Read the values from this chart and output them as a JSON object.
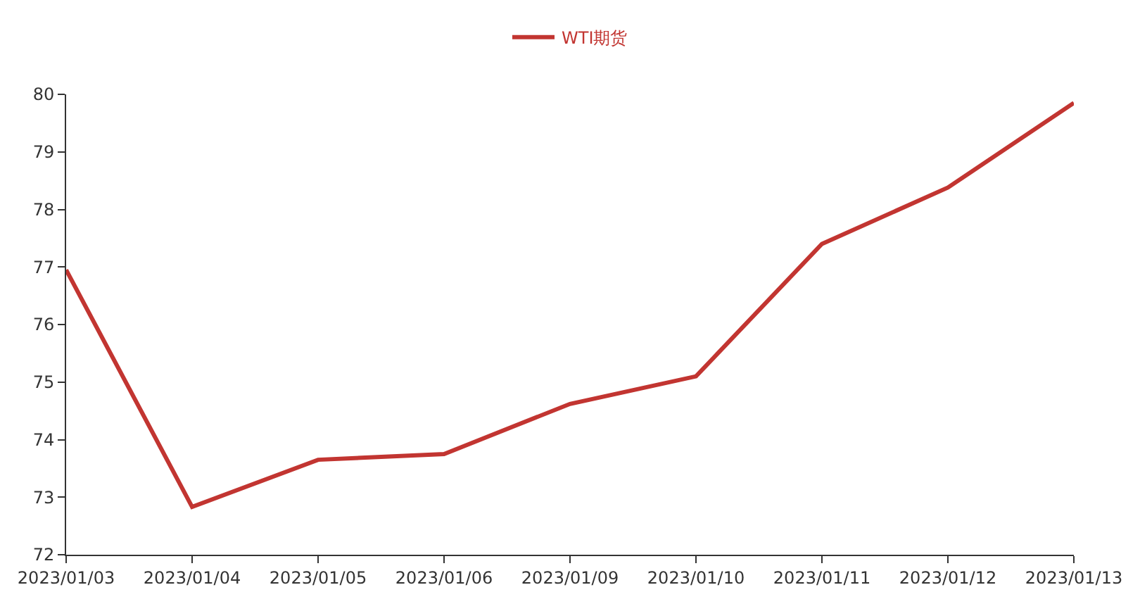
{
  "chart_data": {
    "type": "line",
    "categories": [
      "2023/01/03",
      "2023/01/04",
      "2023/01/05",
      "2023/01/06",
      "2023/01/09",
      "2023/01/10",
      "2023/01/11",
      "2023/01/12",
      "2023/01/13"
    ],
    "series": [
      {
        "name": "WTI期货",
        "color": "#c23531",
        "values": [
          76.95,
          72.83,
          73.65,
          73.75,
          74.62,
          75.1,
          77.4,
          78.38,
          79.85
        ]
      }
    ],
    "ylim": [
      72,
      80
    ],
    "yticks": [
      72,
      73,
      74,
      75,
      76,
      77,
      78,
      79,
      80
    ],
    "legend": "top",
    "marker": "none",
    "line_style": "solid"
  }
}
